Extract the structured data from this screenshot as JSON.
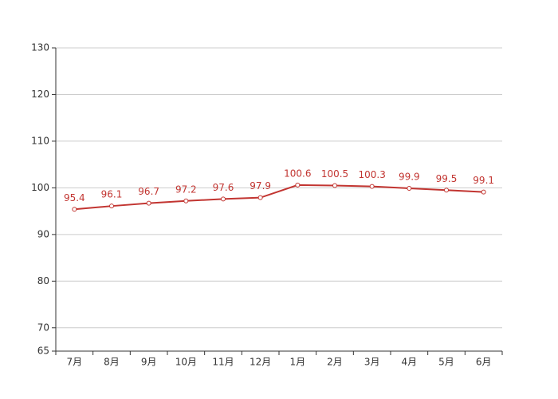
{
  "chart_data": {
    "type": "line",
    "categories": [
      "7月",
      "8月",
      "9月",
      "10月",
      "11月",
      "12月",
      "1月",
      "2月",
      "3月",
      "4月",
      "5月",
      "6月"
    ],
    "values": [
      95.4,
      96.1,
      96.7,
      97.2,
      97.6,
      97.9,
      100.6,
      100.5,
      100.3,
      99.9,
      99.5,
      99.1
    ],
    "color": "#c23531",
    "ylim": [
      65,
      130
    ],
    "yticks": [
      65,
      70,
      80,
      90,
      100,
      110,
      120,
      130
    ],
    "grid": true
  }
}
